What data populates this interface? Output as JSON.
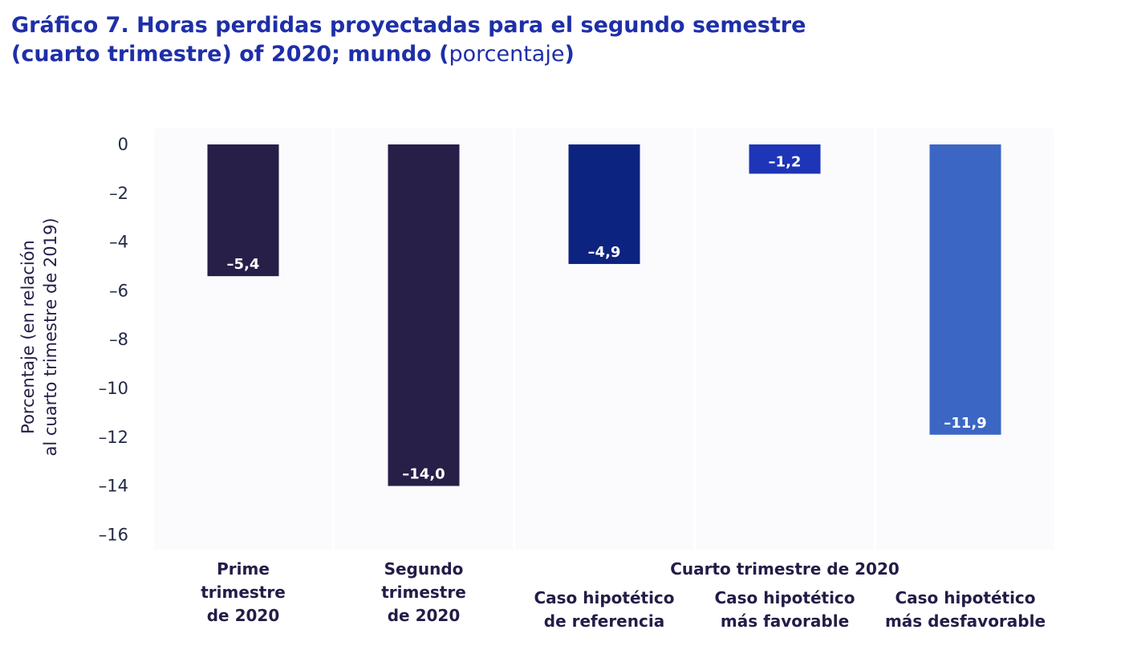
{
  "title": {
    "main": "Gráfico 7.  Horas perdidas proyectadas para el segundo semestre",
    "line2_bold": "(cuarto trimestre) of 2020; mundo",
    "unit": "porcentaje",
    "paren_open": "(",
    "paren_close": ")"
  },
  "chart_data": {
    "type": "bar",
    "title": "Gráfico 7.  Horas perdidas proyectadas para el segundo semestre (cuarto trimestre) of 2020; mundo (porcentaje)",
    "ylabel_lines": [
      "Porcentaje (en relación",
      "al cuarto trimestre de 2019)"
    ],
    "ylim": [
      -16,
      0
    ],
    "yticks": [
      0,
      -2,
      -4,
      -6,
      -8,
      -10,
      -12,
      -14,
      -16
    ],
    "ytick_labels": [
      "0",
      "–2",
      "–4",
      "–6",
      "–8",
      "–10",
      "–12",
      "–14",
      "–16"
    ],
    "group_label": "Cuarto trimestre de 2020",
    "categories": [
      [
        "Prime",
        "trimestre",
        "de 2020"
      ],
      [
        "Segundo",
        "trimestre",
        "de 2020"
      ],
      [
        "Caso hipotético",
        "de referencia"
      ],
      [
        "Caso hipotético",
        "más favorable"
      ],
      [
        "Caso hipotético",
        "más desfavorable"
      ]
    ],
    "values": [
      -5.4,
      -14.0,
      -4.9,
      -1.2,
      -11.9
    ],
    "value_labels": [
      "–5,4",
      "–14,0",
      "–4,9",
      "–1,2",
      "–11,9"
    ],
    "colors": [
      "#271f48",
      "#271f48",
      "#0d2380",
      "#1e35b8",
      "#3b66c4"
    ],
    "grid": false
  }
}
